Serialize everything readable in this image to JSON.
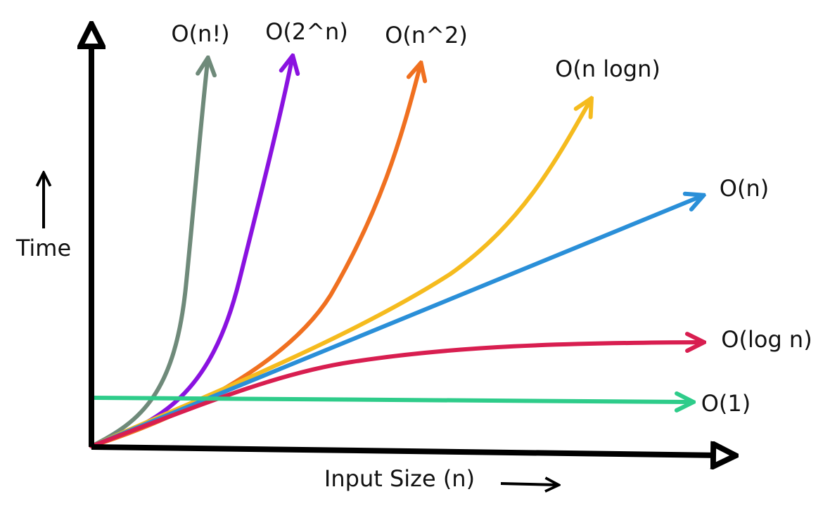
{
  "axes": {
    "y_label": "Time",
    "x_label": "Input Size (n)"
  },
  "curves": [
    {
      "label": "O(n!)",
      "color": "#6f8a7a"
    },
    {
      "label": "O(2^n)",
      "color": "#8a12e0"
    },
    {
      "label": "O(n^2)",
      "color": "#f07020"
    },
    {
      "label": "O(n logn)",
      "color": "#f5bb1e"
    },
    {
      "label": "O(n)",
      "color": "#2a8fd8"
    },
    {
      "label": "O(log n)",
      "color": "#d81e50"
    },
    {
      "label": "O(1)",
      "color": "#2ecc8a"
    }
  ]
}
